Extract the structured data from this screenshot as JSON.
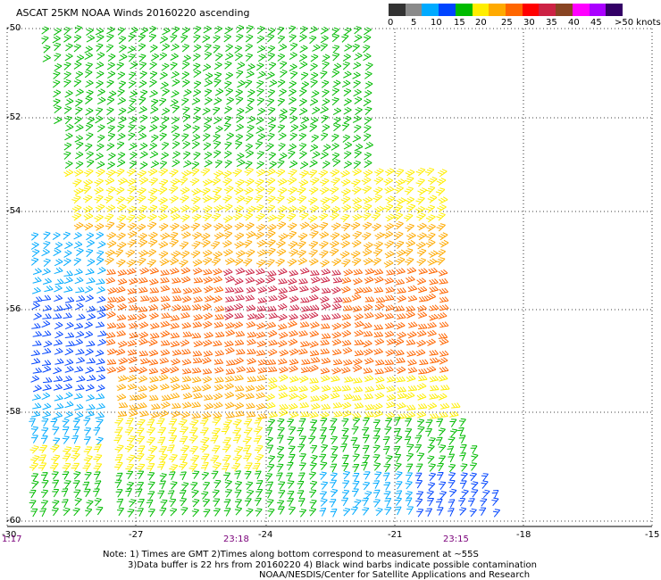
{
  "title": "ASCAT 25KM NOAA Winds 20160220 ascending",
  "legend": {
    "colors": [
      "#333333",
      "#8a8a8a",
      "#00aaff",
      "#0044ff",
      "#00bb00",
      "#ffee00",
      "#ffaa00",
      "#ff6600",
      "#ff0000",
      "#cc2244",
      "#884422",
      "#ff00ff",
      "#aa00ff",
      "#330066"
    ],
    "labels": [
      "0",
      "5",
      "10",
      "15",
      "20",
      "25",
      "30",
      "35",
      "40",
      "45",
      ">50 knots"
    ]
  },
  "lat_labels": [
    "-50",
    "-52",
    "-54",
    "-56",
    "-58",
    "-60"
  ],
  "lon_labels": [
    "-30",
    "-27",
    "-24",
    "-21",
    "-18",
    "-15"
  ],
  "time_labels": [
    "1:17",
    "23:18",
    "23:15"
  ],
  "note": {
    "line1": "Note: 1) Times are GMT 2)Times along bottom correspond to measurement at ~55S",
    "line2": "3)Data buffer is 22 hrs from 20160220 4) Black wind barbs indicate possible contamination",
    "line3": "NOAA/NESDIS/Center for Satellite Applications and Research"
  }
}
